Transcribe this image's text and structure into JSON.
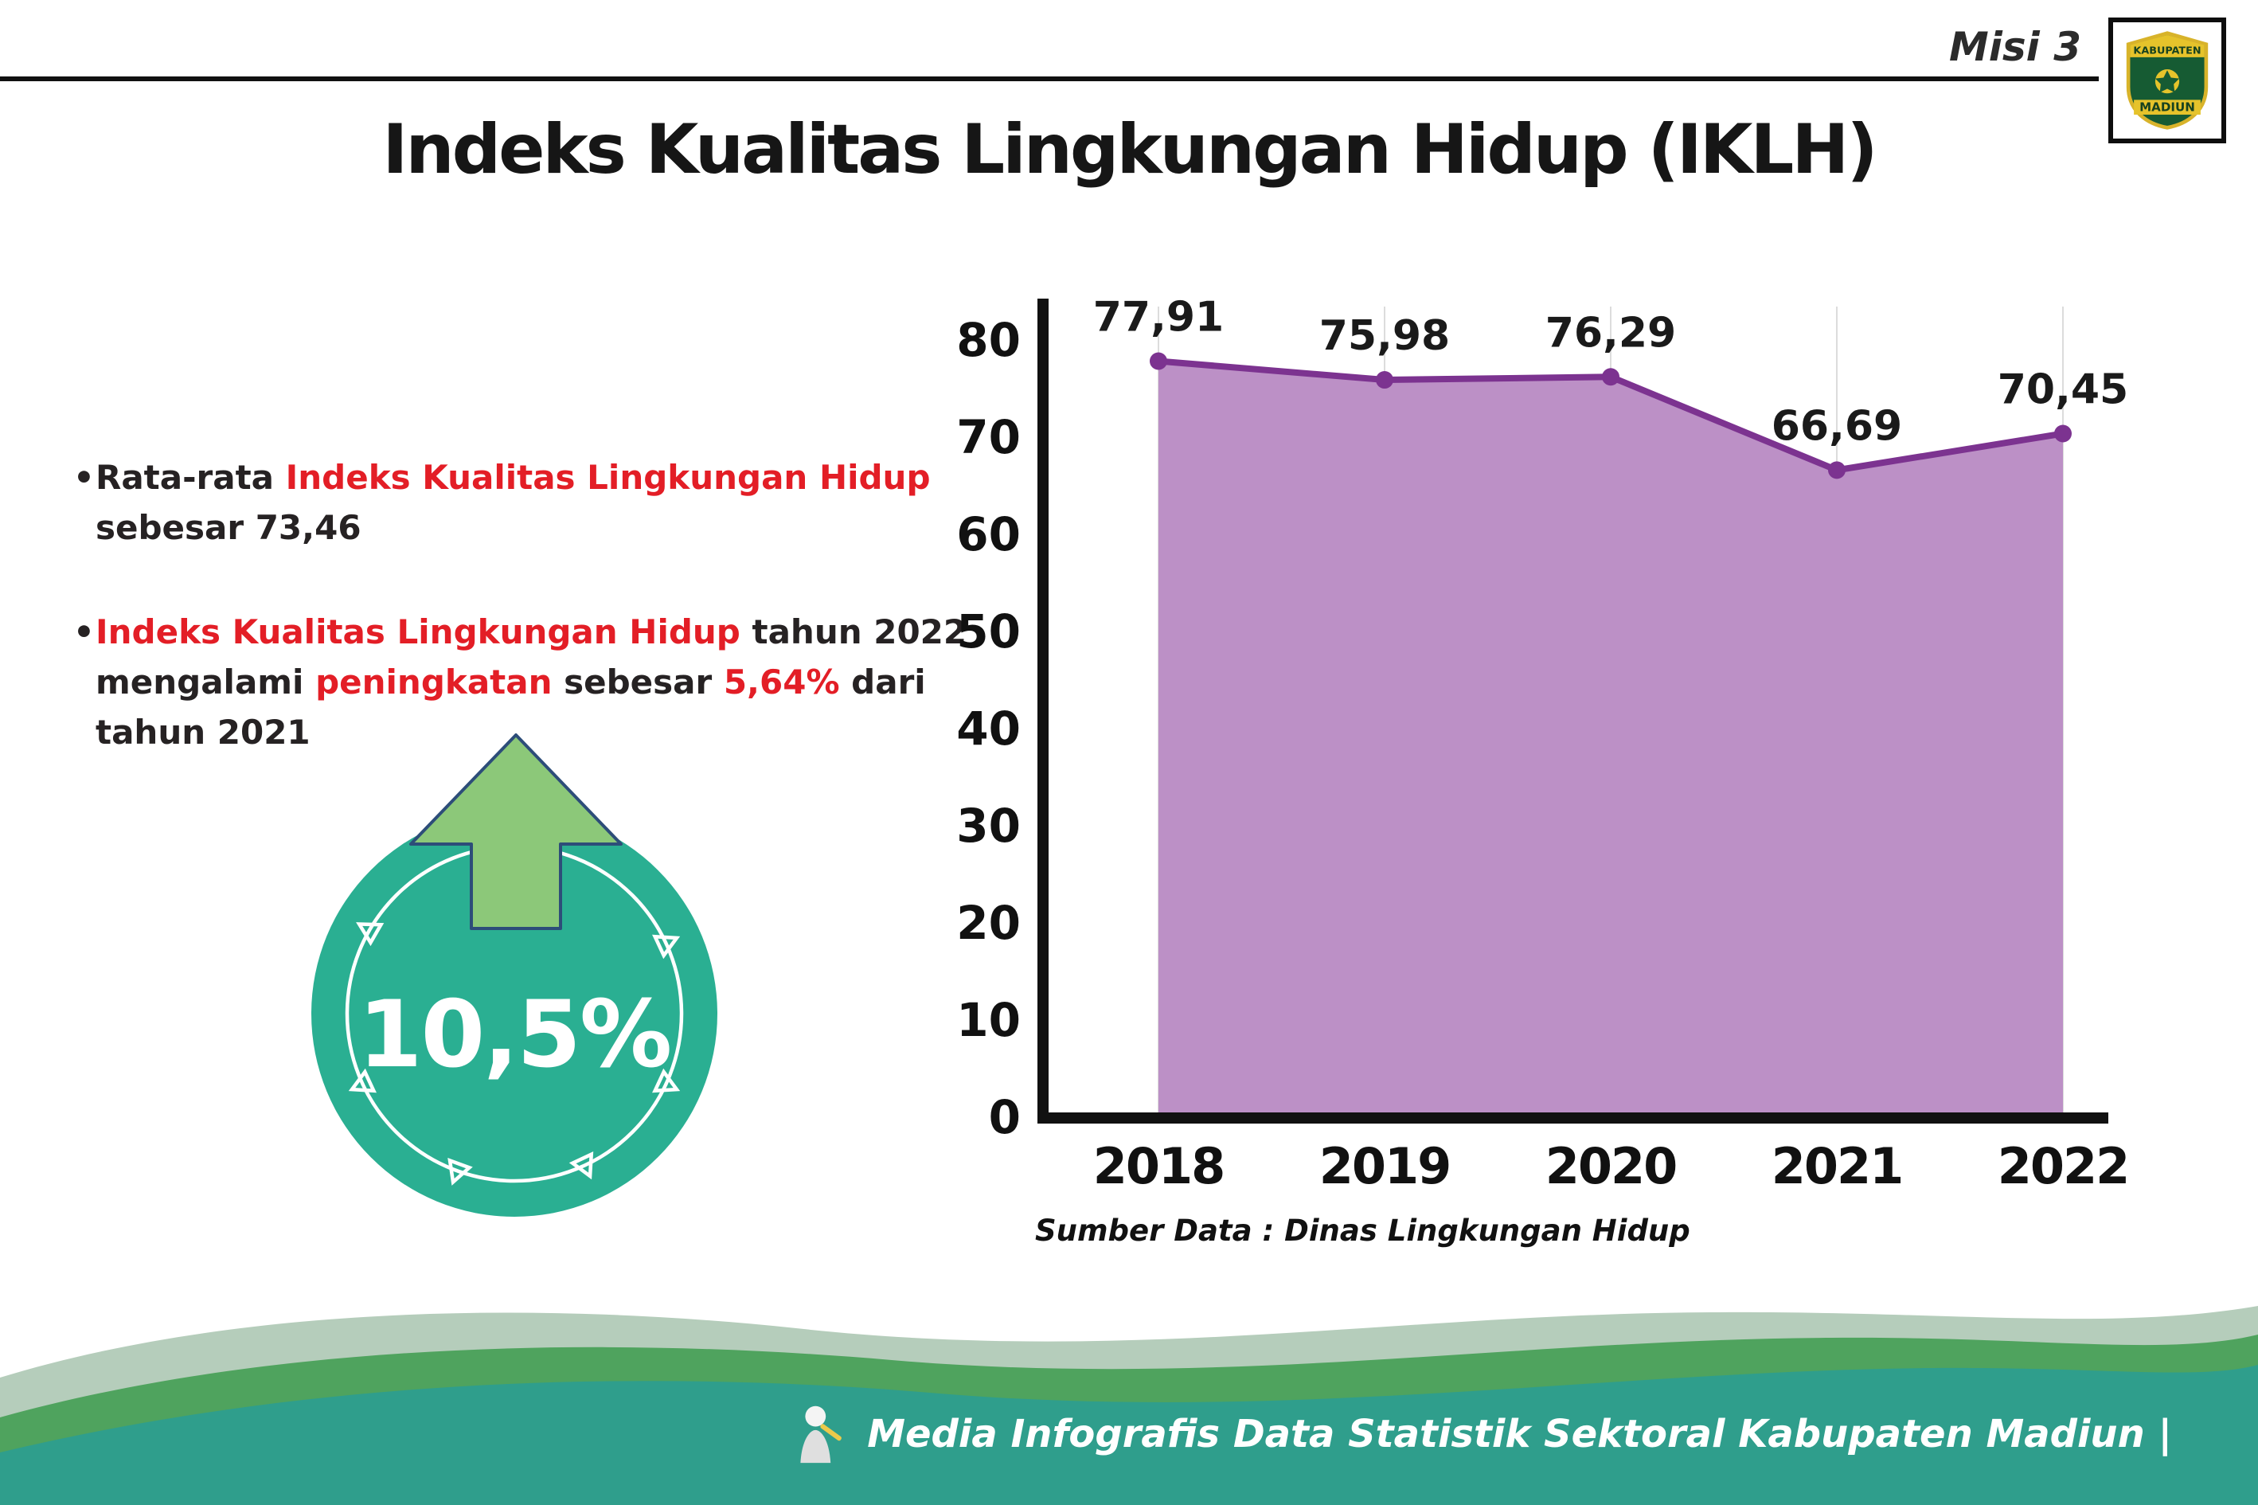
{
  "header": {
    "misi_label": "Misi 3",
    "title": "Indeks Kualitas Lingkungan Hidup (IKLH)"
  },
  "logo": {
    "region_top": "KABUPATEN",
    "region_bottom": "MADIUN"
  },
  "bullets": [
    {
      "marker": "•",
      "lines": [
        [
          {
            "text": "Rata-rata ",
            "color": "#262223"
          },
          {
            "text": "Indeks Kualitas Lingkungan Hidup",
            "color": "#e31e26"
          }
        ],
        [
          {
            "text": "sebesar 73,46",
            "color": "#262223"
          }
        ]
      ]
    },
    {
      "marker": "•",
      "lines": [
        [
          {
            "text": "Indeks Kualitas Lingkungan Hidup",
            "color": "#e31e26"
          },
          {
            "text": " tahun 2022",
            "color": "#262223"
          }
        ],
        [
          {
            "text": "mengalami ",
            "color": "#262223"
          },
          {
            "text": "peningkatan",
            "color": "#e31e26"
          },
          {
            "text": " sebesar ",
            "color": "#262223"
          },
          {
            "text": "5,64%",
            "color": "#e31e26"
          },
          {
            "text": " dari",
            "color": "#262223"
          }
        ],
        [
          {
            "text": "tahun 2021",
            "color": "#262223"
          }
        ]
      ]
    }
  ],
  "badge": {
    "value": "10,5%",
    "circle_color": "#2aaf92",
    "arrow_color": "#8cc879",
    "arrow_outline": "#2d4d79",
    "ring_color": "#ffffff"
  },
  "chart_data": {
    "type": "area",
    "title": "Indeks Kualitas Lingkungan Hidup (IKLH)",
    "categories": [
      "2018",
      "2019",
      "2020",
      "2021",
      "2022"
    ],
    "values": [
      77.91,
      75.98,
      76.29,
      66.69,
      70.45
    ],
    "value_labels": [
      "77,91",
      "75,98",
      "76,29",
      "66,69",
      "70,45"
    ],
    "yticks": [
      0,
      10,
      20,
      30,
      40,
      50,
      60,
      70,
      80
    ],
    "ylim": [
      0,
      84
    ],
    "grid": "vertical-light",
    "legend": "none",
    "fill_color": "#bc90c6",
    "line_color": "#7c3390",
    "axis_color": "#111111",
    "grid_color": "#dcdcdc",
    "source": "Sumber Data : Dinas Lingkungan Hidup"
  },
  "footer": {
    "credit": "Media Infografis Data Statistik Sektoral Kabupaten Madiun |",
    "wave_light": "#b5cdbb",
    "wave_green": "#4fa35e",
    "wave_teal": "#2f9e8c"
  }
}
